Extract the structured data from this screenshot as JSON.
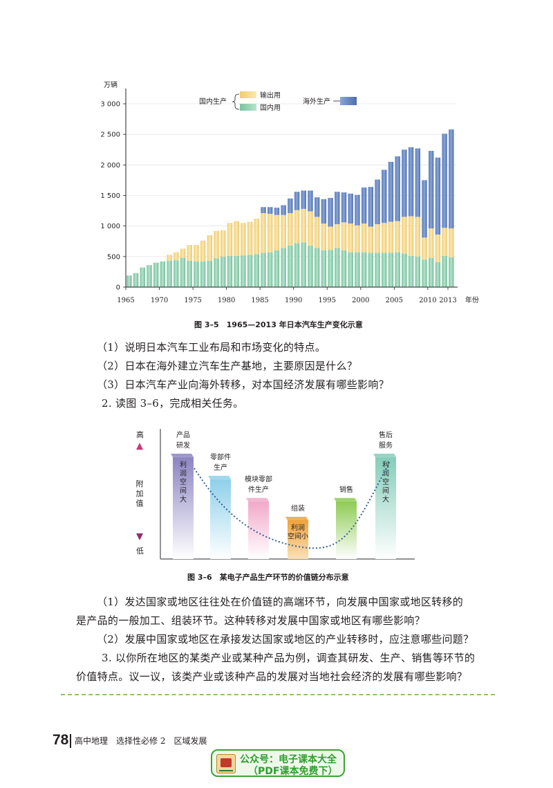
{
  "figure1": {
    "caption": "图 3–5　1965—2013 年日本汽车生产变化示意",
    "chart_data": {
      "type": "bar",
      "stacked": true,
      "ylabel": "万辆",
      "xlabel": "年份",
      "ylim": [
        0,
        3000
      ],
      "yticks": [
        "0",
        "500",
        "1 000",
        "1 500",
        "2 000",
        "2 500",
        "3 000"
      ],
      "xticks": [
        "1965",
        "1970",
        "1975",
        "1980",
        "1985",
        "1990",
        "1995",
        "2000",
        "2005",
        "2010",
        "2013"
      ],
      "legend": {
        "group_label": "国内生产",
        "overseas_label": "海外生产",
        "export_label": "输出用",
        "domestic_label": "国内用"
      },
      "colors": {
        "domestic": "#8ecfb0",
        "export": "#f5d98b",
        "overseas": "#6f8cc4"
      },
      "years": [
        1965,
        1966,
        1967,
        1968,
        1969,
        1970,
        1971,
        1972,
        1973,
        1974,
        1975,
        1976,
        1977,
        1978,
        1979,
        1980,
        1981,
        1982,
        1983,
        1984,
        1985,
        1986,
        1987,
        1988,
        1989,
        1990,
        1991,
        1992,
        1993,
        1994,
        1995,
        1996,
        1997,
        1998,
        1999,
        2000,
        2001,
        2002,
        2003,
        2004,
        2005,
        2006,
        2007,
        2008,
        2009,
        2010,
        2011,
        2012,
        2013
      ],
      "series": [
        {
          "name": "国内用",
          "values": [
            190,
            230,
            320,
            360,
            400,
            420,
            430,
            440,
            480,
            430,
            420,
            420,
            430,
            470,
            500,
            510,
            510,
            520,
            530,
            540,
            560,
            570,
            600,
            640,
            680,
            720,
            730,
            680,
            640,
            600,
            610,
            640,
            600,
            570,
            570,
            570,
            560,
            560,
            560,
            560,
            570,
            550,
            510,
            500,
            450,
            480,
            410,
            510,
            490
          ]
        },
        {
          "name": "输出用",
          "values": [
            0,
            0,
            0,
            0,
            0,
            0,
            100,
            130,
            150,
            260,
            270,
            340,
            420,
            450,
            430,
            540,
            570,
            530,
            540,
            580,
            650,
            630,
            580,
            540,
            530,
            540,
            550,
            560,
            510,
            440,
            380,
            390,
            460,
            470,
            440,
            470,
            430,
            470,
            490,
            510,
            510,
            600,
            650,
            650,
            360,
            480,
            450,
            460,
            470
          ]
        },
        {
          "name": "海外生产",
          "values": [
            0,
            0,
            0,
            0,
            0,
            0,
            0,
            0,
            0,
            0,
            0,
            0,
            0,
            0,
            0,
            0,
            0,
            0,
            0,
            0,
            100,
            110,
            120,
            160,
            240,
            300,
            300,
            340,
            320,
            400,
            470,
            530,
            490,
            490,
            500,
            590,
            650,
            730,
            870,
            980,
            1060,
            1100,
            1130,
            1120,
            940,
            1270,
            1260,
            1540,
            1620
          ]
        }
      ]
    }
  },
  "questions1": [
    "（1）说明日本汽车工业布局和市场变化的特点。",
    "（2）日本在海外建立汽车生产基地，主要原因是什么？",
    "（3）日本汽车产业向海外转移，对本国经济发展有哪些影响？",
    "2. 读图 3–6，完成相关任务。"
  ],
  "figure2": {
    "caption": "图 3–6　某电子产品生产环节的价值链分布示意",
    "axis_high": "高",
    "axis_low": "低",
    "axis_label": [
      "附",
      "加",
      "值"
    ],
    "stages": [
      {
        "label": [
          "产品",
          "研发"
        ],
        "inner": [
          "利",
          "润",
          "空",
          "间",
          "大"
        ],
        "level": 0.92
      },
      {
        "label": [
          "零部件",
          "生产"
        ],
        "inner": [],
        "level": 0.72
      },
      {
        "label": [
          "模块零部",
          "件生产"
        ],
        "inner": [],
        "level": 0.52
      },
      {
        "label": [
          "组装"
        ],
        "inner": [
          "利润",
          "空间小"
        ],
        "level": 0.35
      },
      {
        "label": [
          "销售"
        ],
        "inner": [],
        "level": 0.52
      },
      {
        "label": [
          "售后",
          "服务"
        ],
        "inner": [
          "利",
          "润",
          "空",
          "间",
          "大"
        ],
        "level": 0.92
      }
    ]
  },
  "questions2": [
    "（1）发达国家或地区往往处在价值链的高端环节，向发展中国家或地区转移的",
    "是产品的一般加工、组装环节。这种转移对发展中国家或地区有哪些影响？",
    "（2）发展中国家或地区在承接发达国家或地区的产业转移时，应注意哪些问题？",
    "3. 以你所在地区的某类产业或某种产品为例，调查其研发、生产、销售等环节的",
    "价值特点。议一议，该类产业或该种产品的发展对当地社会经济的发展有哪些影响？"
  ],
  "footer": {
    "page_number": "78",
    "book": "高中地理",
    "volume": "选择性必修 2",
    "section": "区域发展"
  },
  "watermark": {
    "line1": "公众号：电子课本大全",
    "line2": "（PDF课本免费下）"
  }
}
